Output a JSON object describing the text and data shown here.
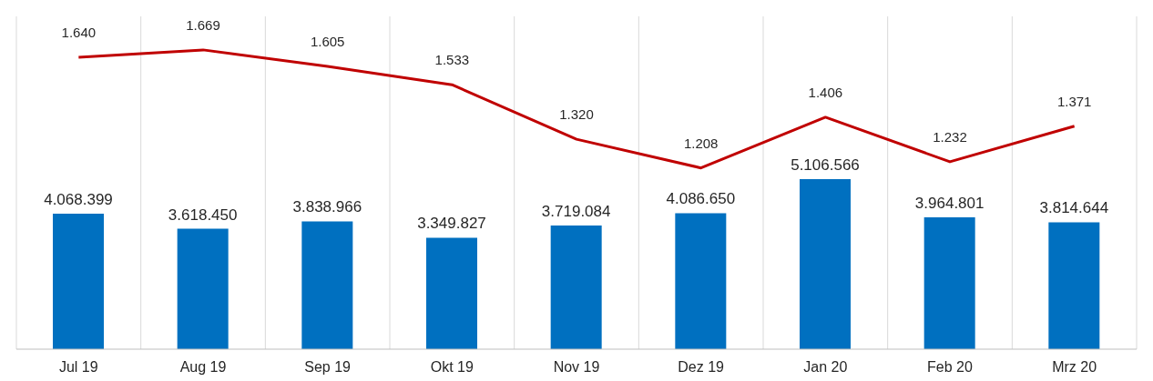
{
  "chart_data": {
    "type": "bar",
    "categories": [
      "Jul 19",
      "Aug 19",
      "Sep 19",
      "Okt 19",
      "Nov 19",
      "Dez 19",
      "Jan 20",
      "Feb 20",
      "Mrz 20"
    ],
    "series": [
      {
        "color": "#0070c0",
        "values": [
          4068399,
          3618450,
          3838966,
          3349827,
          3719084,
          4086650,
          5106566,
          3964801,
          3814644
        ],
        "value_labels": [
          "4.068.399",
          "3.618.450",
          "3.838.966",
          "3.349.827",
          "3.719.084",
          "4.086.650",
          "5.106.566",
          "3.964.801",
          "3.814.644"
        ]
      },
      {
        "type": "line",
        "axis": "y2",
        "color": "#c00000",
        "values": [
          1640,
          1669,
          1605,
          1533,
          1320,
          1208,
          1406,
          1232,
          1371
        ],
        "value_labels": [
          "1.640",
          "1.669",
          "1.605",
          "1.533",
          "1.320",
          "1.208",
          "1.406",
          "1.232",
          "1.371"
        ]
      }
    ],
    "ylim": [
      0,
      10000000
    ],
    "y2lim": [
      500,
      1800
    ],
    "tick_labels": "x",
    "grid": "x",
    "marker": "none"
  }
}
